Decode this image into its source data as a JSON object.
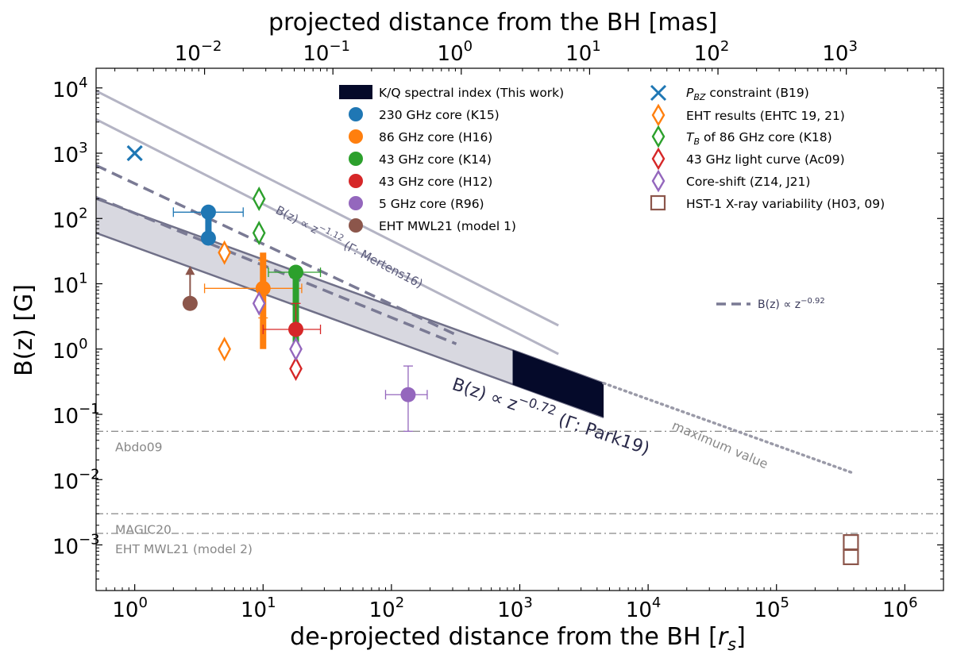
{
  "chart_data": {
    "type": "scatter",
    "title": "",
    "xlabel": "de-projected distance from the BH [",
    "xlabel_var": "r",
    "xlabel_sub": "s",
    "xlabel_end": "]",
    "ylabel": "B(z) [G]",
    "top_xlabel": "projected distance from the BH [mas]",
    "x_scale": "log",
    "y_scale": "log",
    "xlim": [
      0.5,
      2000000
    ],
    "ylim": [
      0.0002,
      20000
    ],
    "x_ticks": [
      {
        "base": "10",
        "exp": "0",
        "value": 1
      },
      {
        "base": "10",
        "exp": "1",
        "value": 10
      },
      {
        "base": "10",
        "exp": "2",
        "value": 100
      },
      {
        "base": "10",
        "exp": "3",
        "value": 1000
      },
      {
        "base": "10",
        "exp": "4",
        "value": 10000
      },
      {
        "base": "10",
        "exp": "5",
        "value": 100000
      },
      {
        "base": "10",
        "exp": "6",
        "value": 1000000
      }
    ],
    "y_ticks": [
      {
        "base": "10",
        "exp": "4",
        "value": 10000
      },
      {
        "base": "10",
        "exp": "3",
        "value": 1000
      },
      {
        "base": "10",
        "exp": "2",
        "value": 100
      },
      {
        "base": "10",
        "exp": "1",
        "value": 10
      },
      {
        "base": "10",
        "exp": "0",
        "value": 1
      },
      {
        "base": "10",
        "exp": "−1",
        "value": 0.1
      },
      {
        "base": "10",
        "exp": "−2",
        "value": 0.01
      },
      {
        "base": "10",
        "exp": "−3",
        "value": 0.001
      }
    ],
    "top_ticks": [
      {
        "base": "10",
        "exp": "−2",
        "value": 3.5
      },
      {
        "base": "10",
        "exp": "−1",
        "value": 35
      },
      {
        "base": "10",
        "exp": "0",
        "value": 350
      },
      {
        "base": "10",
        "exp": "1",
        "value": 3500
      },
      {
        "base": "10",
        "exp": "2",
        "value": 35000
      },
      {
        "base": "10",
        "exp": "3",
        "value": 350000
      }
    ],
    "band": {
      "name": "Γ: Park19 band",
      "x": [
        0.5,
        4500
      ],
      "upper": [
        200,
        0.3
      ],
      "lower": [
        60,
        0.09
      ]
    },
    "spectral_index_block": {
      "name": "K/Q spectral index (This work)",
      "x": [
        880,
        4500
      ],
      "upper": [
        0.97,
        0.3
      ],
      "lower": [
        0.285,
        0.09
      ],
      "color": "#050a2a"
    },
    "mertens_lines": [
      {
        "x": [
          0.5,
          2000
        ],
        "y": [
          9000,
          2.3
        ]
      },
      {
        "x": [
          0.5,
          2000
        ],
        "y": [
          3300,
          0.84
        ]
      }
    ],
    "dashed_lines": [
      {
        "x": [
          0.5,
          320
        ],
        "y": [
          650,
          1.65
        ]
      },
      {
        "x": [
          0.5,
          320
        ],
        "y": [
          210,
          1.2
        ]
      }
    ],
    "max_value_line": {
      "x": [
        4500,
        400000
      ],
      "y": [
        0.3,
        0.0125
      ]
    },
    "horizontal_lines": [
      {
        "label": "Abdo09",
        "y": 0.055
      },
      {
        "label": "MAGIC20",
        "y": 0.003
      },
      {
        "label": "EHT MWL21 (model 2)",
        "y": 0.0015
      }
    ],
    "annotations": {
      "mertens_prefix": "B(z) ∝ z",
      "mertens_exp": "−1.12",
      "mertens_suffix": " (Γ: Mertens16)",
      "park_prefix": "B(z) ∝ z",
      "park_exp": "−0.72",
      "park_suffix": " (Γ: Park19)",
      "max_value": "maximum value",
      "dashed_legend_prefix": "B(z) ∝ z",
      "dashed_legend_exp": "−0.92"
    },
    "series": [
      {
        "name": "230 GHz core (K15)",
        "color": "#1f77b4",
        "points": [
          {
            "x": 3.75,
            "y": 125,
            "xerr": [
              2,
              7
            ]
          },
          {
            "x": 3.75,
            "y": 50
          }
        ],
        "range": [
          50,
          125
        ]
      },
      {
        "name": "86 GHz core (H16)",
        "color": "#ff7f0e",
        "points": [
          {
            "x": 10,
            "y": 8.5,
            "xerr": [
              3.5,
              20
            ],
            "yerr": [
              3,
              23
            ]
          }
        ],
        "range": [
          1,
          30
        ]
      },
      {
        "name": "43 GHz core (K14)",
        "color": "#2ca02c",
        "points": [
          {
            "x": 18,
            "y": 15,
            "xerr": [
              11,
              28
            ]
          }
        ],
        "range": [
          1,
          15
        ]
      },
      {
        "name": "43 GHz core (H12)",
        "color": "#d62728",
        "points": [
          {
            "x": 18,
            "y": 2,
            "xerr": [
              10,
              28
            ],
            "yerr": [
              1,
              5
            ]
          }
        ]
      },
      {
        "name": "5 GHz core (R96)",
        "color": "#9467bd",
        "points": [
          {
            "x": 135,
            "y": 0.2,
            "xerr": [
              90,
              190
            ],
            "yerr": [
              0.055,
              0.55
            ]
          }
        ]
      },
      {
        "name": "EHT MWL21 (model 1)",
        "color": "#8c564b",
        "points": [
          {
            "x": 2.7,
            "y": 5,
            "lower_limit": true
          }
        ]
      }
    ],
    "constraints": [
      {
        "name": "P_BZ constraint (B19)",
        "marker": "x",
        "color": "#1f77b4",
        "x": 1,
        "y": 1000
      },
      {
        "name": "EHT results (EHTC 19, 21)",
        "marker": "diamond",
        "color": "#ff7f0e",
        "points": [
          [
            5,
            30
          ],
          [
            5,
            1
          ]
        ]
      },
      {
        "name": "T_B of 86 GHz core (K18)",
        "marker": "diamond",
        "color": "#2ca02c",
        "points": [
          [
            9.3,
            200
          ],
          [
            9.3,
            60
          ]
        ]
      },
      {
        "name": "43 GHz light curve (Ac09)",
        "marker": "diamond",
        "color": "#d62728",
        "points": [
          [
            18,
            0.5
          ]
        ]
      },
      {
        "name": "Core-shift (Z14, J21)",
        "marker": "diamond",
        "color": "#9467bd",
        "points": [
          [
            9.3,
            5
          ],
          [
            18,
            1
          ]
        ]
      },
      {
        "name": "HST-1 X-ray variability (H03, 09)",
        "marker": "square",
        "color": "#8c564b",
        "points": [
          [
            380000,
            0.0011
          ],
          [
            380000,
            0.00065
          ]
        ]
      }
    ],
    "legend": {
      "position": "top-right",
      "left_entries": [
        {
          "label": "K/Q spectral index (This work)",
          "marker": "rect",
          "color": "#050a2a"
        },
        {
          "label": "230 GHz core (K15)",
          "marker": "dot",
          "color": "#1f77b4"
        },
        {
          "label": "86 GHz core (H16)",
          "marker": "dot",
          "color": "#ff7f0e"
        },
        {
          "label": "43 GHz core (K14)",
          "marker": "dot",
          "color": "#2ca02c"
        },
        {
          "label": "43 GHz core (H12)",
          "marker": "dot",
          "color": "#d62728"
        },
        {
          "label": "5 GHz core (R96)",
          "marker": "dot",
          "color": "#9467bd"
        },
        {
          "label": "EHT MWL21 (model 1)",
          "marker": "dot",
          "color": "#8c564b"
        }
      ],
      "right_entries": [
        {
          "label": "P",
          "label_sub": "BZ",
          "label_rest": " constraint (B19)",
          "marker": "x",
          "color": "#1f77b4"
        },
        {
          "label": "EHT results (EHTC 19, 21)",
          "marker": "diamond",
          "color": "#ff7f0e"
        },
        {
          "label": "T",
          "label_sub": "B",
          "label_rest": " of 86 GHz core (K18)",
          "marker": "diamond",
          "color": "#2ca02c"
        },
        {
          "label": "43 GHz light curve (Ac09)",
          "marker": "diamond",
          "color": "#d62728"
        },
        {
          "label": "Core-shift (Z14, J21)",
          "marker": "diamond",
          "color": "#9467bd"
        },
        {
          "label": "HST-1 X-ray variability (H03, 09)",
          "marker": "square",
          "color": "#8c564b"
        }
      ]
    },
    "colors": {
      "band_fill": "#d8d8e0",
      "band_edge": "#707088",
      "mertens_line": "#b4b4c4",
      "dashed_line": "#7a7a94",
      "max_value_line": "#9a9aa8",
      "hline": "#888888",
      "annotation": "#5a5a7a"
    }
  }
}
